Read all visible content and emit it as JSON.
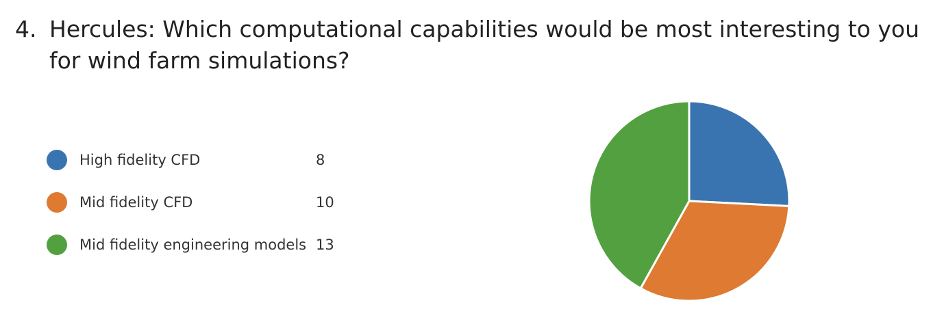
{
  "question": {
    "number": "4.",
    "text": "Hercules: Which computational capabilities would be most interesting to you for wind farm simulations?"
  },
  "chart_data": {
    "type": "pie",
    "categories": [
      "High fidelity CFD",
      "Mid fidelity CFD",
      "Mid fidelity engineering models"
    ],
    "values": [
      8,
      10,
      13
    ],
    "colors": [
      "#3a74b0",
      "#de7a31",
      "#52a040"
    ],
    "start_angle": "12 o'clock",
    "direction": "clockwise",
    "legend_placement": "left"
  }
}
